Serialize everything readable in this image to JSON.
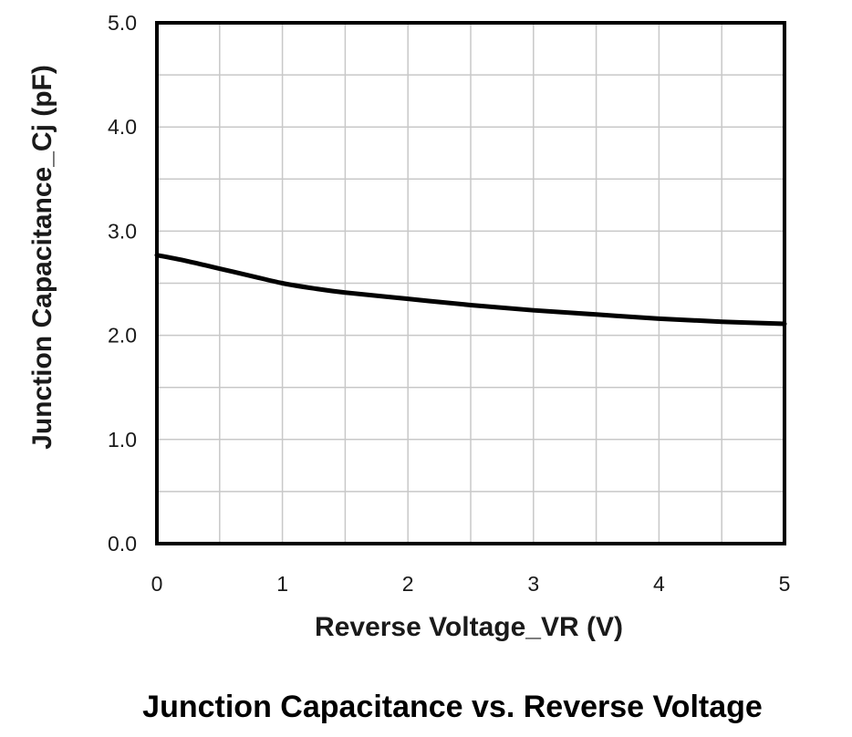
{
  "chart_data": {
    "type": "line",
    "title": "Junction Capacitance vs. Reverse Voltage",
    "xlabel": "Reverse Voltage_VR (V)",
    "ylabel": "Junction Capacitance_Cj (pF)",
    "xlim": [
      0,
      5
    ],
    "ylim": [
      0,
      5
    ],
    "x_ticks": [
      0,
      1,
      2,
      3,
      4,
      5
    ],
    "x_tick_labels": [
      "0",
      "1",
      "2",
      "3",
      "4",
      "5"
    ],
    "y_ticks": [
      0,
      1,
      2,
      3,
      4,
      5
    ],
    "y_tick_labels": [
      "0.0",
      "1.0",
      "2.0",
      "3.0",
      "4.0",
      "5.0"
    ],
    "grid": true,
    "legend": "none",
    "series": [
      {
        "x": [
          0,
          0.25,
          0.5,
          0.75,
          1,
          1.25,
          1.5,
          2,
          2.5,
          3,
          3.5,
          4,
          4.5,
          5
        ],
        "y": [
          2.77,
          2.71,
          2.64,
          2.57,
          2.5,
          2.45,
          2.41,
          2.35,
          2.29,
          2.24,
          2.2,
          2.16,
          2.13,
          2.11
        ]
      }
    ],
    "line_color": "#000000",
    "grid_color": "#c8c8c8"
  }
}
